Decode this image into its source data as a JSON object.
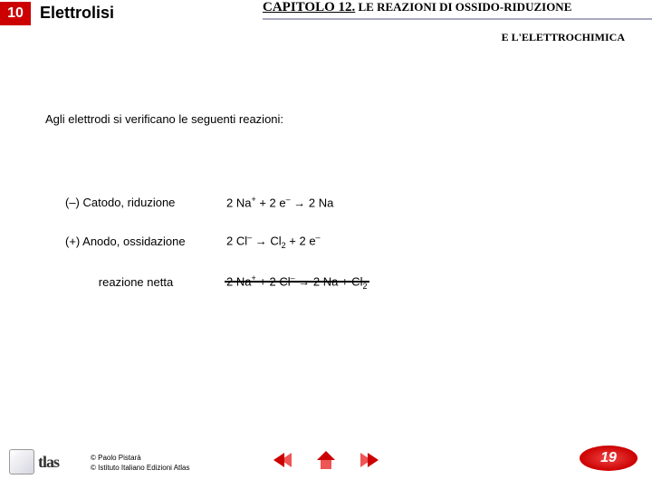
{
  "header": {
    "section_number": "10",
    "section_title": "Elettrolisi",
    "chapter_prefix": "CAPITOLO 12.",
    "chapter_rest": " LE REAZIONI DI OSSIDO-RIDUZIONE",
    "chapter_sub": "E L'ELETTROCHIMICA"
  },
  "content": {
    "intro": "Agli elettrodi si verificano le seguenti reazioni:",
    "rows": [
      {
        "label": "(–) Catodo, riduzione",
        "eq_html": " 2 Na<span class='sup'>+</span> + 2 e<span class='sup'>–</span> → 2 Na",
        "centered": false
      },
      {
        "label": "(+) Anodo, ossidazione",
        "eq_html": "2 Cl<span class='sup'>–</span> → Cl<span class='sub'>2</span> + 2 e<span class='sup'>–</span>",
        "centered": false
      },
      {
        "label": "reazione netta",
        "eq_html": "2 Na<span class='sup'>+</span> +  2 Cl<span class='sup'>–</span> → 2 Na + Cl<span class='sub'>2</span>",
        "centered": true
      }
    ]
  },
  "footer": {
    "logo_text": "tlas",
    "copyright_line1": "© Paolo Pistarà",
    "copyright_line2": "© Istituto Italiano Edizioni Atlas",
    "page_number": "19"
  },
  "colors": {
    "accent": "#cc0000",
    "underline": "#a9a9c0"
  }
}
